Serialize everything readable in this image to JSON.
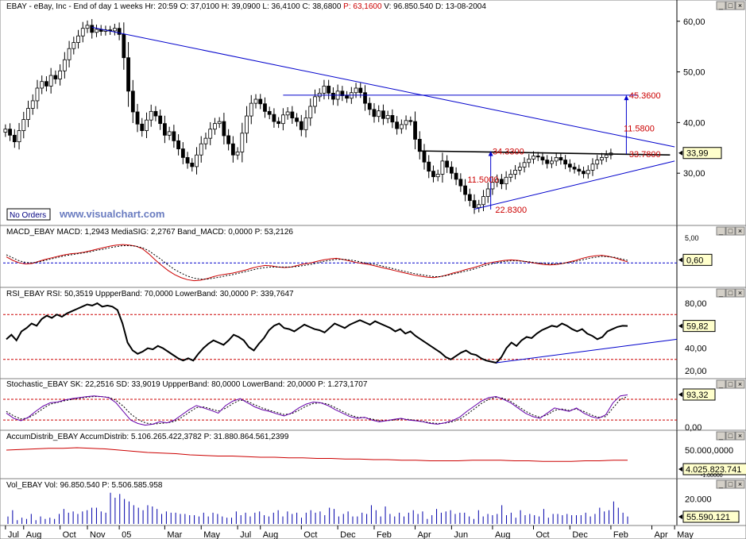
{
  "main_panel": {
    "header": "EBAY - eBay, Inc - End of day 1 weeks  Hr: 20:59  O: 37,0100  H: 39,0900  L: 36,4100  C: 38,6800  P: 63,1600  V: 96.850.540  D: 13-08-2004",
    "header_highlight": "P: 63,1600",
    "price_badge": "33,99",
    "no_orders": "No Orders",
    "watermark": "www.visualchart.com",
    "annotations": [
      {
        "text": "45.3600",
        "x": 57.3,
        "y": 45.36
      },
      {
        "text": "11.5800",
        "x": 56.8,
        "y": 38.9
      },
      {
        "text": "33.7800",
        "x": 57.3,
        "y": 33.78
      },
      {
        "text": "34.3300",
        "x": 44.8,
        "y": 34.33
      },
      {
        "text": "11.5000",
        "x": 42.3,
        "y": 28.8
      },
      {
        "text": "22.8300",
        "x": 45.3,
        "y": 22.83
      }
    ]
  },
  "macd_panel": {
    "header": "MACD_EBAY  MACD: 1,2943  MediaSIG: 2,2767  Band_MACD: 0,0000  P: 53,2126",
    "badge": "0,60",
    "top_tick": "5,00"
  },
  "rsi_panel": {
    "header": "RSI_EBAY  RSI: 50,3519  UppperBand: 70,0000  LowerBand: 30,0000  P: 339,7647",
    "badge": "59,82"
  },
  "stoch_panel": {
    "header": "Stochastic_EBAY  SK: 22,2516  SD: 33,9019  UppperBand: 80,0000  LowerBand: 20,0000  P: 1.273,1707",
    "badge": "93,32"
  },
  "accum_panel": {
    "header": "AccumDistrib_EBAY  AccumDistrib: 5.106.265.422,3782  P: 31.880.864.561,2399",
    "badge": "4.025.823.741",
    "tick": "50.000,0000",
    "tick2": "-1.00000"
  },
  "vol_panel": {
    "header": "Vol_EBAY  Vol: 96.850.540  P: 5.506.585.958",
    "badge": "55.590.121",
    "tick": "20.000"
  },
  "colors": {
    "candle_up": "#ffffff",
    "candle_down": "#000000",
    "trendline": "#0000cc",
    "macd": "#cc0000",
    "band": "#cc0000",
    "stoch_k": "#6600aa",
    "badge_bg": "#ffffcc"
  },
  "chart_data": [
    {
      "type": "candlestick",
      "title": "EBAY - eBay, Inc - End of day 1 weeks",
      "x_axis": {
        "labels": [
          "Jul",
          "Aug",
          "Oct",
          "Nov",
          "05",
          "Mar",
          "May",
          "Jul",
          "Aug",
          "Oct",
          "Dec",
          "Feb",
          "Apr",
          "Jun",
          "Aug",
          "Oct",
          "Dec",
          "Feb",
          "Apr",
          "May"
        ],
        "label_weeks": [
          0,
          4,
          12,
          18,
          25,
          35,
          43,
          51,
          56,
          65,
          73,
          81,
          90,
          98,
          107,
          116,
          124,
          133,
          142,
          147
        ]
      },
      "ylim": [
        20,
        62
      ],
      "y_ticks": [
        "30,00",
        "40,00",
        "50,00",
        "60,00"
      ],
      "close": [
        38.7,
        37.5,
        36.2,
        38.4,
        40.6,
        42.8,
        44.3,
        46.8,
        48.1,
        47.2,
        49.3,
        48.6,
        50.2,
        52.4,
        54.6,
        55.8,
        57.1,
        58.6,
        59.2,
        57.8,
        58.4,
        58.0,
        58.3,
        58.1,
        58.6,
        57.4,
        52.8,
        46.2,
        42.1,
        39.7,
        38.4,
        40.5,
        42.2,
        41.3,
        39.8,
        37.5,
        38.2,
        36.4,
        34.8,
        33.1,
        32.0,
        31.3,
        33.6,
        35.8,
        36.9,
        38.7,
        39.8,
        40.2,
        37.4,
        35.8,
        33.6,
        34.2,
        37.9,
        41.3,
        43.8,
        44.6,
        43.7,
        42.2,
        41.6,
        40.2,
        39.8,
        41.5,
        42.1,
        40.9,
        40.2,
        38.6,
        40.9,
        43.2,
        45.1,
        45.8,
        47.2,
        45.8,
        44.6,
        46.2,
        45.3,
        44.8,
        45.9,
        46.8,
        45.9,
        43.8,
        42.6,
        41.2,
        42.3,
        40.8,
        41.4,
        40.1,
        38.8,
        39.6,
        40.4,
        40.2,
        36.7,
        34.3,
        32.2,
        30.4,
        29.3,
        29.8,
        32.4,
        31.2,
        30.0,
        28.8,
        27.5,
        25.8,
        24.6,
        23.2,
        23.8,
        25.4,
        26.9,
        28.2,
        28.8,
        27.9,
        29.2,
        29.8,
        30.6,
        31.2,
        32.1,
        32.8,
        33.4,
        33.2,
        32.6,
        31.9,
        32.4,
        33.1,
        32.6,
        31.8,
        31.2,
        30.8,
        30.4,
        29.9,
        30.6,
        31.8,
        32.6,
        33.1,
        33.6,
        33.99
      ],
      "trendlines": [
        {
          "kind": "resistance",
          "from": [
            19,
            58.8
          ],
          "to": [
            147,
            35.2
          ]
        },
        {
          "kind": "support",
          "from": [
            103,
            22.9
          ],
          "to": [
            147,
            32.4
          ]
        },
        {
          "kind": "neckline",
          "from": [
            91,
            34.4
          ],
          "to": [
            146,
            33.6
          ]
        },
        {
          "kind": "horizontal",
          "from": [
            61,
            45.4
          ],
          "to": [
            139,
            45.4
          ]
        }
      ]
    },
    {
      "type": "line",
      "title": "MACD_EBAY",
      "series": [
        {
          "name": "MACD",
          "values": [
            1.2,
            0.5,
            0.0,
            -0.2,
            -0.1,
            0.3,
            0.7,
            1.0,
            1.3,
            1.6,
            1.8,
            1.9,
            2.1,
            2.4,
            2.7,
            3.0,
            3.3,
            3.5,
            3.6,
            3.5,
            3.3,
            2.8,
            1.8,
            0.6,
            -0.5,
            -1.5,
            -2.3,
            -2.9,
            -3.3,
            -3.5,
            -3.4,
            -3.1,
            -2.7,
            -2.4,
            -2.2,
            -2.0,
            -1.7,
            -1.4,
            -1.0,
            -0.7,
            -0.5,
            -0.6,
            -0.8,
            -0.9,
            -0.8,
            -0.5,
            -0.2,
            0.0,
            0.3,
            0.6,
            0.8,
            0.9,
            0.7,
            0.4,
            0.1,
            -0.1,
            -0.3,
            -0.6,
            -0.9,
            -1.2,
            -1.5,
            -1.8,
            -2.1,
            -2.4,
            -2.6,
            -2.8,
            -2.9,
            -2.7,
            -2.4,
            -2.0,
            -1.7,
            -1.3,
            -1.0,
            -0.6,
            -0.2,
            0.1,
            0.3,
            0.5,
            0.6,
            0.5,
            0.3,
            0.1,
            -0.1,
            -0.3,
            -0.4,
            -0.3,
            -0.1,
            0.2,
            0.5,
            0.9,
            1.2,
            1.4,
            1.5,
            1.3,
            1.0,
            0.6,
            0.2
          ]
        },
        {
          "name": "MediaSIG",
          "values": [
            1.6,
            1.0,
            0.4,
            0.1,
            0.0,
            0.2,
            0.5,
            0.8,
            1.1,
            1.4,
            1.6,
            1.8,
            2.0,
            2.2,
            2.5,
            2.7,
            3.0,
            3.2,
            3.4,
            3.4,
            3.3,
            3.0,
            2.4,
            1.5,
            0.6,
            -0.4,
            -1.3,
            -2.0,
            -2.6,
            -3.0,
            -3.2,
            -3.2,
            -3.0,
            -2.8,
            -2.5,
            -2.3,
            -2.0,
            -1.7,
            -1.4,
            -1.1,
            -0.9,
            -0.8,
            -0.8,
            -0.8,
            -0.8,
            -0.7,
            -0.5,
            -0.3,
            0.0,
            0.3,
            0.5,
            0.7,
            0.7,
            0.6,
            0.4,
            0.1,
            -0.1,
            -0.3,
            -0.6,
            -0.9,
            -1.2,
            -1.5,
            -1.8,
            -2.1,
            -2.3,
            -2.5,
            -2.7,
            -2.7,
            -2.5,
            -2.2,
            -1.9,
            -1.6,
            -1.3,
            -0.9,
            -0.5,
            -0.2,
            0.1,
            0.3,
            0.4,
            0.4,
            0.3,
            0.2,
            0.0,
            -0.1,
            -0.2,
            -0.2,
            -0.1,
            0.1,
            0.3,
            0.6,
            0.9,
            1.1,
            1.3,
            1.2,
            1.1,
            0.8,
            0.5
          ]
        },
        {
          "name": "Band_MACD",
          "values": [
            0.0
          ]
        }
      ],
      "ylim": [
        -4.5,
        5.5
      ]
    },
    {
      "type": "line",
      "title": "RSI_EBAY",
      "series": [
        {
          "name": "RSI",
          "values": [
            48,
            52,
            47,
            55,
            58,
            62,
            60,
            66,
            69,
            67,
            70,
            68,
            71,
            73,
            75,
            77,
            79,
            78,
            80,
            77,
            78,
            77,
            74,
            62,
            45,
            38,
            35,
            37,
            40,
            39,
            42,
            40,
            37,
            34,
            31,
            29,
            31,
            29,
            35,
            40,
            44,
            47,
            45,
            43,
            47,
            52,
            50,
            47,
            41,
            38,
            44,
            49,
            56,
            60,
            62,
            58,
            57,
            55,
            58,
            61,
            59,
            57,
            56,
            54,
            58,
            62,
            60,
            58,
            61,
            63,
            65,
            63,
            61,
            64,
            62,
            60,
            58,
            55,
            57,
            53,
            55,
            51,
            48,
            45,
            42,
            39,
            36,
            32,
            30,
            33,
            36,
            38,
            35,
            34,
            31,
            29,
            28,
            27,
            32,
            40,
            45,
            42,
            47,
            50,
            49,
            53,
            56,
            58,
            60,
            59,
            62,
            60,
            57,
            55,
            57,
            53,
            51,
            48,
            50,
            55,
            57,
            59,
            60,
            59.8
          ]
        },
        {
          "name": "UppperBand",
          "values": [
            70
          ]
        },
        {
          "name": "LowerBand",
          "values": [
            30
          ]
        }
      ],
      "ylim": [
        15,
        85
      ],
      "y_ticks": [
        "20,00",
        "40,00",
        "60,00",
        "80,00"
      ]
    },
    {
      "type": "line",
      "title": "Stochastic_EBAY",
      "series": [
        {
          "name": "SK",
          "values": [
            40,
            25,
            18,
            28,
            45,
            60,
            70,
            72,
            78,
            82,
            85,
            88,
            90,
            88,
            85,
            70,
            45,
            20,
            10,
            5,
            8,
            15,
            12,
            20,
            35,
            50,
            62,
            55,
            48,
            40,
            62,
            75,
            82,
            70,
            58,
            50,
            45,
            38,
            32,
            40,
            55,
            66,
            72,
            70,
            62,
            50,
            40,
            30,
            25,
            28,
            20,
            15,
            18,
            22,
            25,
            20,
            18,
            15,
            10,
            8,
            12,
            18,
            28,
            45,
            60,
            75,
            85,
            88,
            80,
            70,
            55,
            40,
            30,
            25,
            40,
            55,
            50,
            45,
            55,
            40,
            30,
            25,
            35,
            70,
            90,
            93
          ]
        },
        {
          "name": "SD",
          "values": [
            45,
            32,
            23,
            26,
            38,
            53,
            66,
            71,
            76,
            80,
            83,
            86,
            88,
            88,
            86,
            77,
            60,
            38,
            22,
            12,
            8,
            10,
            12,
            16,
            28,
            42,
            56,
            58,
            52,
            46,
            54,
            68,
            78,
            74,
            64,
            55,
            48,
            42,
            36,
            38,
            48,
            60,
            68,
            70,
            66,
            56,
            45,
            35,
            28,
            27,
            23,
            18,
            18,
            20,
            23,
            22,
            19,
            16,
            12,
            10,
            11,
            15,
            22,
            36,
            52,
            68,
            80,
            86,
            83,
            74,
            60,
            46,
            35,
            28,
            35,
            48,
            52,
            48,
            52,
            45,
            35,
            28,
            30,
            55,
            80,
            88
          ]
        },
        {
          "name": "UppperBand",
          "values": [
            80
          ]
        },
        {
          "name": "LowerBand",
          "values": [
            20
          ]
        }
      ],
      "ylim": [
        -5,
        110
      ],
      "y_ticks": [
        "0,00"
      ]
    },
    {
      "type": "line",
      "title": "AccumDistrib_EBAY",
      "series": [
        {
          "name": "AccumDistrib",
          "values": [
            44,
            45,
            46,
            47,
            47,
            48,
            47,
            46,
            44,
            42,
            40,
            39,
            38,
            36,
            35,
            34,
            34,
            33,
            32,
            32,
            31,
            31,
            30,
            30,
            29,
            29,
            28,
            28,
            27,
            27,
            26,
            26,
            26,
            27,
            27,
            27,
            26,
            26,
            25,
            25,
            25,
            26,
            26,
            27,
            27
          ]
        }
      ],
      "ylim": [
        0,
        60
      ],
      "y_ticks": [
        "50.000,0000"
      ]
    },
    {
      "type": "bar",
      "title": "Vol_EBAY",
      "series": [
        {
          "name": "Vol",
          "values": [
            6,
            11,
            3,
            5,
            4,
            8,
            3,
            6,
            4,
            5,
            4,
            8,
            12,
            9,
            10,
            8,
            10,
            11,
            13,
            13,
            10,
            9,
            25,
            21,
            24,
            20,
            18,
            15,
            13,
            11,
            15,
            14,
            12,
            8,
            10,
            9,
            9,
            8,
            8,
            7,
            7,
            6,
            9,
            6,
            9,
            8,
            6,
            5,
            5,
            10,
            7,
            9,
            6,
            9,
            10,
            7,
            6,
            9,
            11,
            6,
            10,
            8,
            9,
            5,
            9,
            11,
            9,
            10,
            7,
            13,
            12,
            6,
            8,
            10,
            6,
            6,
            9,
            8,
            15,
            11,
            6,
            14,
            8,
            6,
            9,
            6,
            9,
            11,
            8,
            10,
            4,
            7,
            12,
            9,
            10,
            11,
            8,
            9,
            9,
            6,
            4,
            11,
            6,
            8,
            7,
            8,
            15,
            7,
            9,
            5,
            11,
            7,
            8,
            7,
            6,
            12,
            5,
            8,
            8,
            7,
            8,
            7,
            7,
            7,
            9,
            6,
            8,
            13,
            10,
            11,
            18,
            13,
            9,
            6
          ]
        }
      ],
      "ylim": [
        0,
        28
      ],
      "y_ticks": [
        "20.000"
      ]
    }
  ]
}
